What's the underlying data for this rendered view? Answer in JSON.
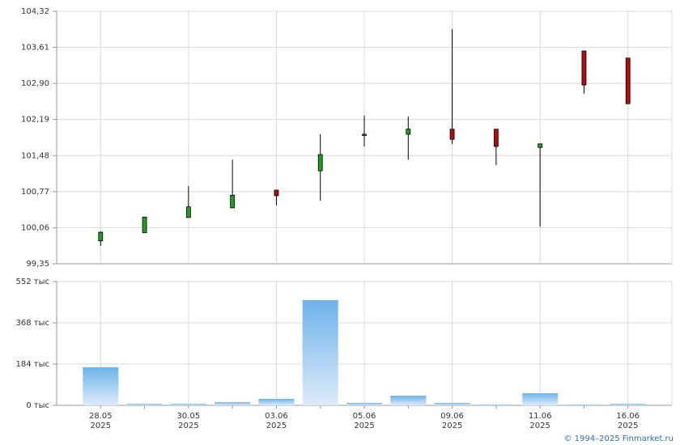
{
  "copyright": "© 1994–2025 Finmarket.ru",
  "chart_data": [
    {
      "type": "candlestick",
      "categories": [
        "28.05",
        null,
        "30.05",
        null,
        "03.06",
        null,
        "05.06",
        null,
        "09.06",
        null,
        "11.06",
        null,
        "16.06"
      ],
      "category_years": [
        "2025",
        null,
        "2025",
        null,
        "2025",
        null,
        "2025",
        null,
        "2025",
        null,
        "2025",
        null,
        "2025"
      ],
      "open": [
        99.8,
        99.96,
        100.26,
        100.45,
        100.8,
        101.18,
        101.88,
        101.9,
        102.0,
        102.0,
        101.64,
        103.54,
        103.4
      ],
      "high": [
        99.99,
        100.27,
        100.88,
        101.4,
        100.8,
        101.9,
        102.27,
        102.25,
        103.97,
        102.0,
        101.71,
        103.54,
        103.4
      ],
      "low": [
        99.7,
        99.96,
        100.26,
        100.45,
        100.5,
        100.59,
        101.66,
        101.4,
        101.71,
        101.29,
        100.08,
        102.7,
        102.5
      ],
      "close": [
        99.97,
        100.27,
        100.47,
        100.7,
        100.69,
        101.5,
        101.9,
        102.0,
        101.8,
        101.66,
        101.71,
        102.87,
        102.5
      ],
      "up_color": "#1f9e1f",
      "down_color": "#b30c0c",
      "ylim": [
        99.35,
        104.32
      ],
      "yticks": [
        {
          "value": 99.35,
          "label": "99,35"
        },
        {
          "value": 100.06,
          "label": "100,06"
        },
        {
          "value": 100.77,
          "label": "100,77"
        },
        {
          "value": 101.48,
          "label": "101,48"
        },
        {
          "value": 102.19,
          "label": "102,19"
        },
        {
          "value": 102.9,
          "label": "102,90"
        },
        {
          "value": 103.61,
          "label": "103,61"
        },
        {
          "value": 104.32,
          "label": "104,32"
        }
      ],
      "grid": true
    },
    {
      "type": "bar",
      "values": [
        170,
        7,
        7,
        14,
        29,
        469,
        11,
        43,
        11,
        4,
        54,
        4,
        7
      ],
      "color": "#6db3ec",
      "ylim": [
        0,
        552
      ],
      "yticks": [
        {
          "value": 0,
          "label": "0 тыс"
        },
        {
          "value": 184,
          "label": "184 тыс"
        },
        {
          "value": 368,
          "label": "368 тыс"
        },
        {
          "value": 552,
          "label": "552 тыс"
        }
      ],
      "grid": true
    }
  ]
}
